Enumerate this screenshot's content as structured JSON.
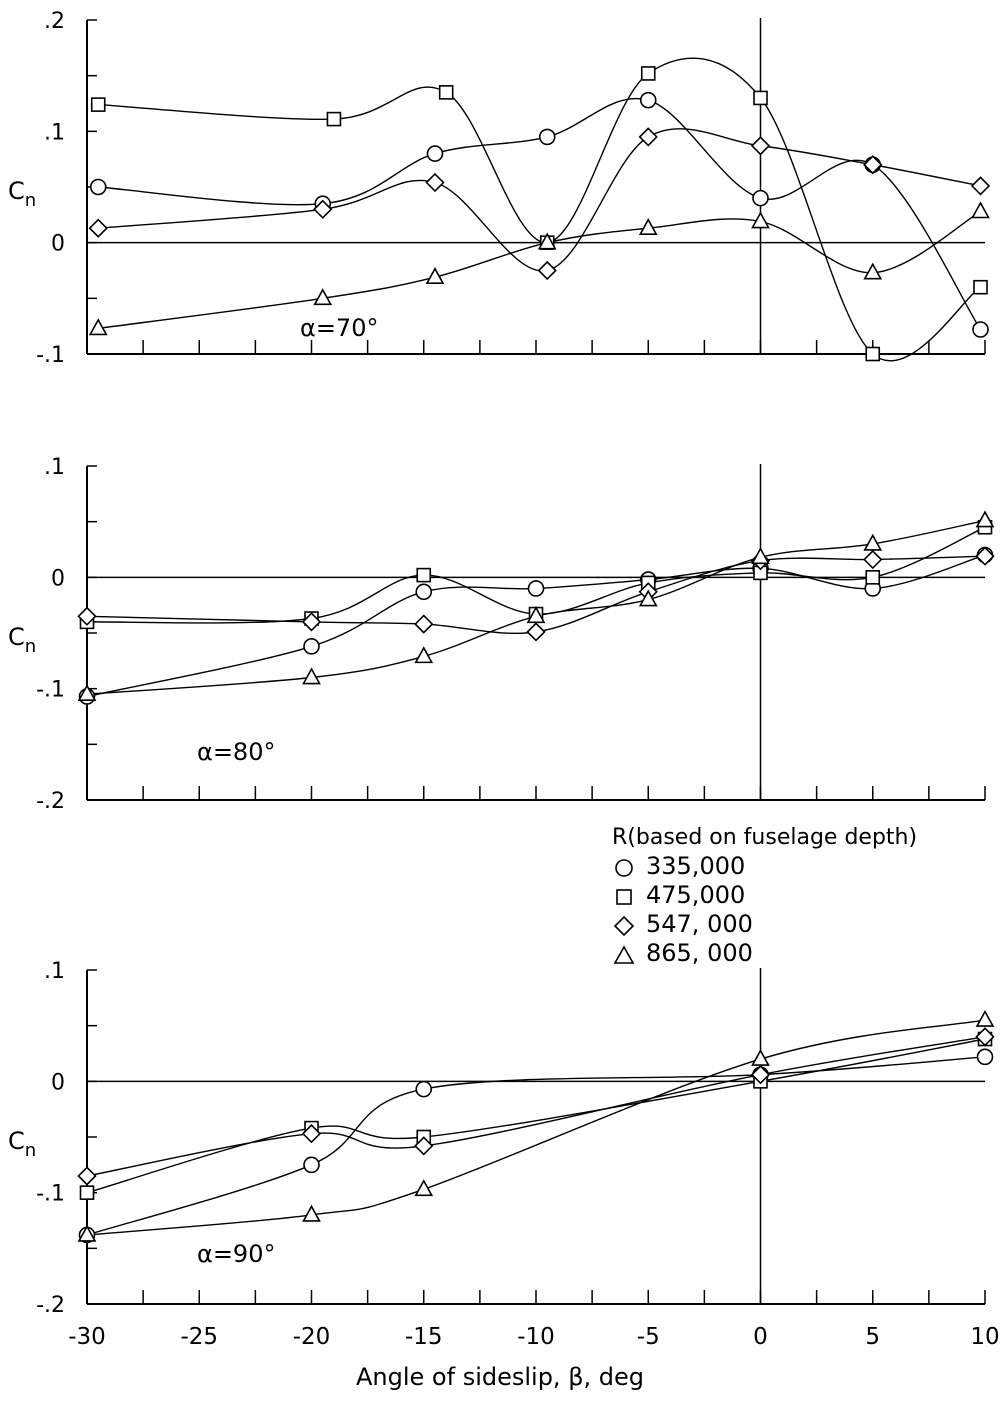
{
  "chart_data": [
    {
      "type": "line",
      "annotation": "α=70°",
      "ylabel": "Cn",
      "xlim": [
        -30,
        10
      ],
      "ylim": [
        -0.1,
        0.2
      ],
      "yticks": [
        0.2,
        0.1,
        0,
        -0.1
      ],
      "ytick_labels": [
        ".2",
        ".1",
        "0",
        "-.1"
      ],
      "series": [
        {
          "marker": "circle",
          "x": [
            -29.5,
            -19.5,
            -14.5,
            -9.5,
            -5,
            0,
            5,
            9.8
          ],
          "y": [
            0.05,
            0.035,
            0.08,
            0.095,
            0.128,
            0.04,
            0.07,
            -0.078
          ]
        },
        {
          "marker": "square",
          "x": [
            -29.5,
            -19,
            -14,
            -9.5,
            -5,
            0,
            5,
            9.8
          ],
          "y": [
            0.124,
            0.111,
            0.135,
            0.0,
            0.152,
            0.13,
            -0.1,
            -0.04
          ]
        },
        {
          "marker": "diamond",
          "x": [
            -29.5,
            -19.5,
            -14.5,
            -9.5,
            -5,
            0,
            5,
            9.8
          ],
          "y": [
            0.013,
            0.03,
            0.054,
            -0.025,
            0.095,
            0.087,
            0.07,
            0.051
          ]
        },
        {
          "marker": "triangle",
          "x": [
            -29.5,
            -19.5,
            -14.5,
            -9.5,
            -5,
            0,
            5,
            9.8
          ],
          "y": [
            -0.077,
            -0.05,
            -0.031,
            0.0,
            0.013,
            0.019,
            -0.027,
            0.028
          ]
        }
      ]
    },
    {
      "type": "line",
      "annotation": "α=80°",
      "ylabel": "Cn",
      "xlim": [
        -30,
        10
      ],
      "ylim": [
        -0.2,
        0.1
      ],
      "yticks": [
        0.1,
        0,
        -0.1,
        -0.2
      ],
      "ytick_labels": [
        ".1",
        "0",
        "-.1",
        "-.2"
      ],
      "series": [
        {
          "marker": "circle",
          "x": [
            -30,
            -20,
            -15,
            -10,
            -5,
            0,
            5,
            10
          ],
          "y": [
            -0.107,
            -0.062,
            -0.013,
            -0.01,
            -0.002,
            0.008,
            -0.01,
            0.02
          ]
        },
        {
          "marker": "square",
          "x": [
            -30,
            -20,
            -15,
            -10,
            -5,
            0,
            5,
            10
          ],
          "y": [
            -0.04,
            -0.037,
            0.002,
            -0.033,
            -0.005,
            0.004,
            0.0,
            0.045
          ]
        },
        {
          "marker": "diamond",
          "x": [
            -30,
            -20,
            -15,
            -10,
            -5,
            0,
            5,
            10
          ],
          "y": [
            -0.035,
            -0.04,
            -0.042,
            -0.049,
            -0.013,
            0.015,
            0.016,
            0.019
          ]
        },
        {
          "marker": "triangle",
          "x": [
            -30,
            -20,
            -15,
            -10,
            -5,
            0,
            5,
            10
          ],
          "y": [
            -0.105,
            -0.09,
            -0.071,
            -0.035,
            -0.02,
            0.018,
            0.03,
            0.051
          ]
        }
      ]
    },
    {
      "type": "line",
      "annotation": "α=90°",
      "ylabel": "Cn",
      "xlabel": "Angle of sideslip, β, deg",
      "xlim": [
        -30,
        10
      ],
      "ylim": [
        -0.2,
        0.1
      ],
      "xticks": [
        -30,
        -25,
        -20,
        -15,
        -10,
        -5,
        0,
        5,
        10
      ],
      "xtick_labels": [
        "-30",
        "-25",
        "-20",
        "-15",
        "-10",
        "-5",
        "0",
        "5",
        "10"
      ],
      "yticks": [
        0.1,
        0,
        -0.1,
        -0.2
      ],
      "ytick_labels": [
        ".1",
        "0",
        "-.1",
        "-.2"
      ],
      "series": [
        {
          "marker": "circle",
          "x": [
            -30,
            -20,
            -15,
            0,
            10
          ],
          "y": [
            -0.138,
            -0.075,
            -0.007,
            0.006,
            0.022
          ]
        },
        {
          "marker": "square",
          "x": [
            -30,
            -20,
            -15,
            0,
            10
          ],
          "y": [
            -0.1,
            -0.042,
            -0.05,
            0.0,
            0.038
          ]
        },
        {
          "marker": "diamond",
          "x": [
            -30,
            -20,
            -15,
            0,
            10
          ],
          "y": [
            -0.085,
            -0.047,
            -0.058,
            0.006,
            0.04
          ]
        },
        {
          "marker": "triangle",
          "x": [
            -30,
            -20,
            -15,
            0,
            10
          ],
          "y": [
            -0.138,
            -0.12,
            -0.097,
            0.02,
            0.055
          ]
        }
      ]
    }
  ],
  "legend": {
    "title": "R(based on fuselage depth)",
    "items": [
      {
        "marker": "circle",
        "label": "335,000"
      },
      {
        "marker": "square",
        "label": "475,000"
      },
      {
        "marker": "diamond",
        "label": "547, 000"
      },
      {
        "marker": "triangle",
        "label": "865, 000"
      }
    ]
  }
}
